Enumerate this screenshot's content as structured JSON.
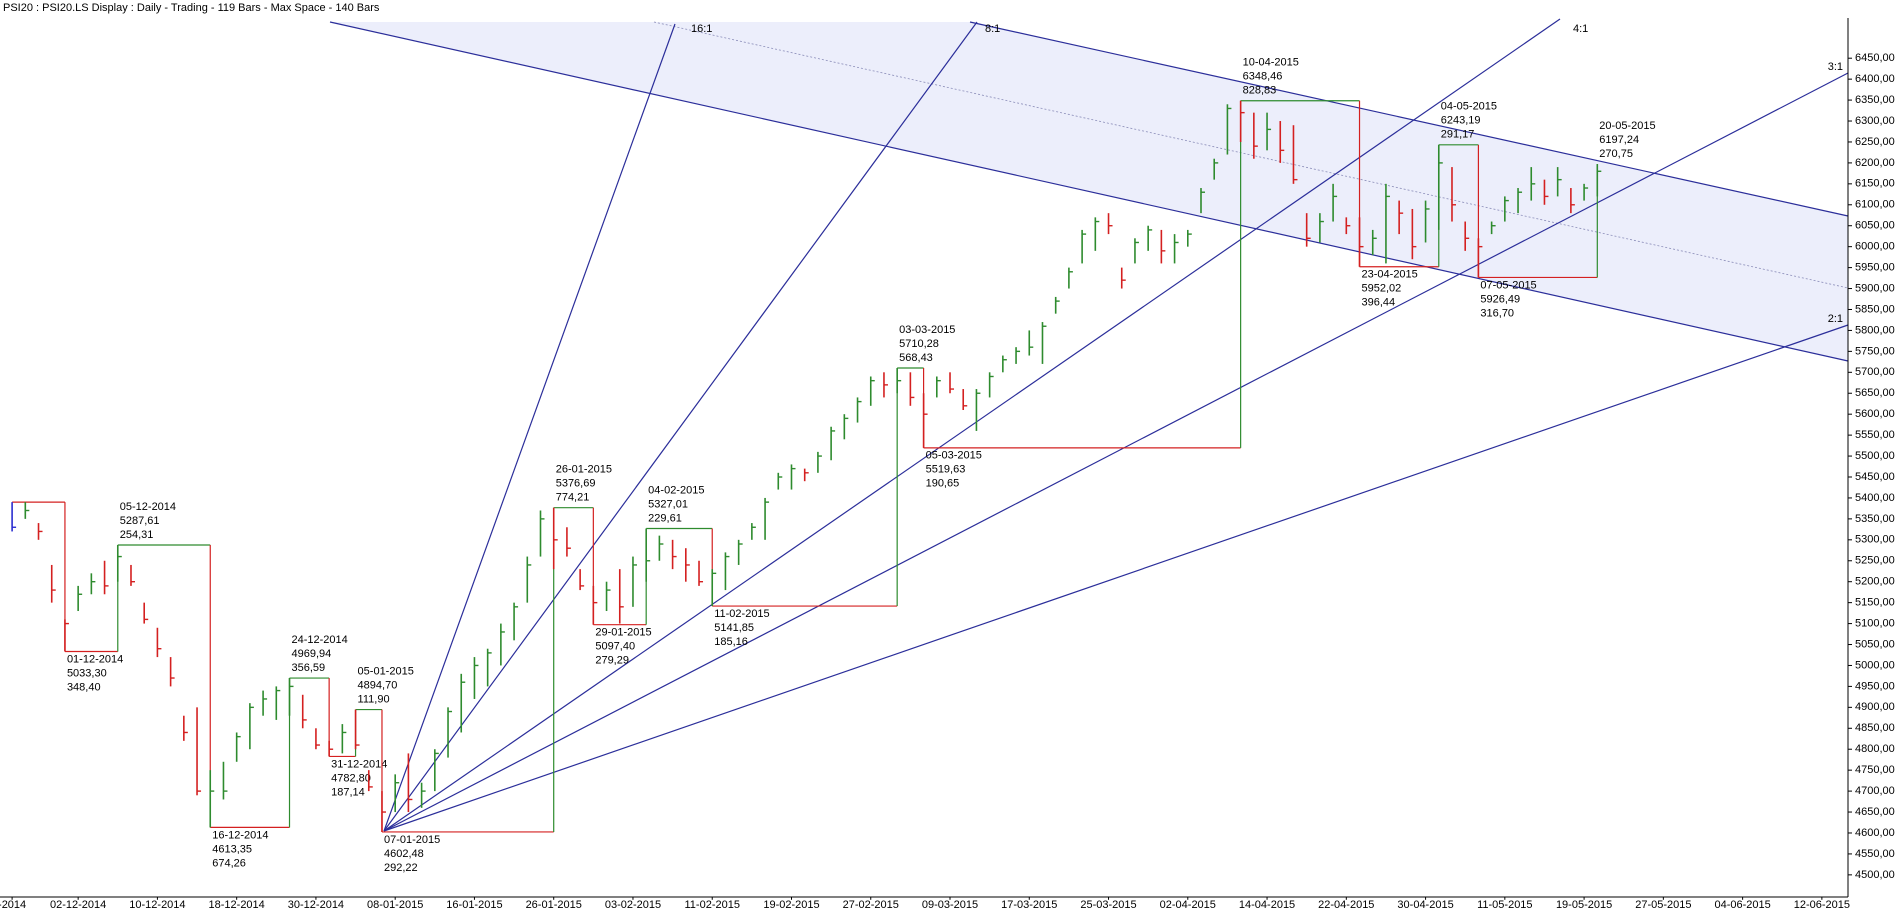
{
  "header": {
    "title": "PSI20 : PSI20.LS Display :  Daily  - Trading - 119 Bars -  Max Space - 140 Bars"
  },
  "chart_data": {
    "type": "ohlc",
    "categories": [
      "-2014",
      null,
      null,
      null,
      null,
      "02-12-2014",
      null,
      null,
      null,
      null,
      null,
      "10-12-2014",
      null,
      null,
      null,
      null,
      null,
      "18-12-2014",
      null,
      null,
      null,
      null,
      null,
      "30-12-2014",
      null,
      null,
      null,
      null,
      null,
      "08-01-2015",
      null,
      null,
      null,
      null,
      null,
      "16-01-2015",
      null,
      null,
      null,
      null,
      null,
      "26-01-2015",
      null,
      null,
      null,
      null,
      null,
      "03-02-2015",
      null,
      null,
      null,
      null,
      null,
      "11-02-2015",
      null,
      null,
      null,
      null,
      null,
      "19-02-2015",
      null,
      null,
      null,
      null,
      null,
      "27-02-2015",
      null,
      null,
      null,
      null,
      null,
      "09-03-2015",
      null,
      null,
      null,
      null,
      null,
      "17-03-2015",
      null,
      null,
      null,
      null,
      null,
      "25-03-2015",
      null,
      null,
      null,
      null,
      null,
      "02-04-2015",
      null,
      null,
      null,
      null,
      null,
      "14-04-2015",
      null,
      null,
      null,
      null,
      null,
      "22-04-2015",
      null,
      null,
      null,
      null,
      null,
      "30-04-2015",
      null,
      null,
      null,
      null,
      null,
      "11-05-2015",
      null,
      null,
      null,
      null,
      null,
      "19-05-2015",
      null,
      null,
      null,
      null,
      null,
      "27-05-2015",
      null,
      null,
      null,
      null,
      null,
      "04-06-2015",
      null,
      null,
      null,
      null,
      null,
      "12-06-2015",
      null,
      null
    ],
    "high": [
      5390,
      5390,
      5340,
      5240,
      5110,
      5190,
      5220,
      5250,
      5287.61,
      5240,
      5150,
      5090,
      5020,
      4880,
      4900,
      4750,
      4770,
      4840,
      4910,
      4940,
      4950,
      4969.94,
      4930,
      4850,
      4820,
      4860,
      4894.7,
      4750,
      4700,
      4740,
      4790,
      4720,
      4800,
      4900,
      4980,
      5020,
      5040,
      5100,
      5150,
      5260,
      5370,
      5376.69,
      5330,
      5230,
      5190,
      5200,
      5230,
      5260,
      5327.01,
      5310,
      5300,
      5280,
      5250,
      5230,
      5270,
      5300,
      5340,
      5400,
      5460,
      5480,
      5470,
      5510,
      5570,
      5600,
      5640,
      5690,
      5700,
      5710.28,
      5700,
      5650,
      5690,
      5700,
      5660,
      5660,
      5700,
      5740,
      5760,
      5800,
      5820,
      5880,
      5950,
      6040,
      6070,
      6080,
      5950,
      6020,
      6050,
      6040,
      6030,
      6040,
      6140,
      6210,
      6340,
      6348.46,
      6320,
      6320,
      6300,
      6290,
      6080,
      6080,
      6150,
      6070,
      6070,
      6040,
      6150,
      6110,
      6090,
      6110,
      6243.19,
      6190,
      6060,
      6020,
      6060,
      6120,
      6140,
      6190,
      6160,
      6190,
      6140,
      6150,
      6197.24,
      null,
      null,
      null,
      null,
      null,
      null,
      null,
      null,
      null,
      null,
      null,
      null,
      null,
      null,
      null,
      null,
      null,
      null,
      null
    ],
    "low": [
      5320,
      5350,
      5300,
      5150,
      5033.3,
      5130,
      5170,
      5170,
      5200,
      5190,
      5100,
      5020,
      4950,
      4820,
      4690,
      4613.35,
      4680,
      4770,
      4800,
      4880,
      4870,
      4880,
      4850,
      4800,
      4782.8,
      4790,
      4800,
      4700,
      4602.48,
      4650,
      4650,
      4660,
      4700,
      4780,
      4840,
      4920,
      4950,
      5000,
      5060,
      5150,
      5260,
      5230,
      5260,
      5180,
      5097.4,
      5130,
      5100,
      5140,
      5200,
      5250,
      5230,
      5200,
      5190,
      5141.85,
      5180,
      5240,
      5300,
      5300,
      5420,
      5420,
      5440,
      5460,
      5490,
      5540,
      5580,
      5620,
      5640,
      5650,
      5620,
      5519.63,
      5640,
      5650,
      5610,
      5560,
      5640,
      5700,
      5720,
      5740,
      5720,
      5840,
      5900,
      5960,
      5990,
      6030,
      5900,
      5960,
      5990,
      5960,
      5960,
      6000,
      6080,
      6160,
      6220,
      6250,
      6210,
      6230,
      6200,
      6150,
      6000,
      6010,
      6060,
      6030,
      5952.02,
      5980,
      5960,
      6030,
      5970,
      6010,
      6040,
      6060,
      5990,
      5926.49,
      6030,
      6060,
      6080,
      6110,
      6100,
      6120,
      6080,
      6110,
      6120,
      null,
      null,
      null,
      null,
      null,
      null,
      null,
      null,
      null,
      null,
      null,
      null,
      null,
      null,
      null,
      null,
      null,
      null,
      null
    ],
    "close": [
      5330,
      5370,
      5320,
      5180,
      5100,
      5170,
      5200,
      5190,
      5260,
      5200,
      5110,
      5040,
      4970,
      4840,
      4700,
      4700,
      4700,
      4830,
      4900,
      4920,
      4940,
      4950,
      4870,
      4810,
      4800,
      4840,
      4810,
      4710,
      4650,
      4720,
      4680,
      4700,
      4790,
      4890,
      4960,
      5000,
      5030,
      5080,
      5140,
      5240,
      5350,
      5300,
      5280,
      5190,
      5150,
      5180,
      5140,
      5240,
      5250,
      5290,
      5260,
      5240,
      5200,
      5220,
      5260,
      5290,
      5330,
      5390,
      5450,
      5470,
      5460,
      5500,
      5560,
      5590,
      5630,
      5680,
      5670,
      5680,
      5640,
      5600,
      5680,
      5660,
      5620,
      5650,
      5690,
      5730,
      5750,
      5760,
      5810,
      5870,
      5940,
      6030,
      6060,
      6050,
      5920,
      6010,
      6040,
      5990,
      6010,
      6030,
      6130,
      6200,
      6330,
      6320,
      6240,
      6280,
      6230,
      6160,
      6020,
      6060,
      6120,
      6050,
      6000,
      6020,
      6120,
      6080,
      6000,
      6090,
      6200,
      6100,
      6020,
      6000,
      6050,
      6110,
      6130,
      6150,
      6120,
      6160,
      6100,
      6140,
      6180,
      null,
      null,
      null,
      null,
      null,
      null,
      null,
      null,
      null,
      null,
      null,
      null,
      null,
      null,
      null,
      null,
      null,
      null,
      null
    ],
    "up_color": "#2e8b2e",
    "down_color": "#d42020",
    "ylim": [
      4450,
      6530
    ],
    "yticks": [
      {
        "value": 4500,
        "label": "4500,00"
      },
      {
        "value": 4550,
        "label": "4550,00"
      },
      {
        "value": 4600,
        "label": "4600,00"
      },
      {
        "value": 4650,
        "label": "4650,00"
      },
      {
        "value": 4700,
        "label": "4700,00"
      },
      {
        "value": 4750,
        "label": "4750,00"
      },
      {
        "value": 4800,
        "label": "4800,00"
      },
      {
        "value": 4850,
        "label": "4850,00"
      },
      {
        "value": 4900,
        "label": "4900,00"
      },
      {
        "value": 4950,
        "label": "4950,00"
      },
      {
        "value": 5000,
        "label": "5000,00"
      },
      {
        "value": 5050,
        "label": "5050,00"
      },
      {
        "value": 5100,
        "label": "5100,00"
      },
      {
        "value": 5150,
        "label": "5150,00"
      },
      {
        "value": 5200,
        "label": "5200,00"
      },
      {
        "value": 5250,
        "label": "5250,00"
      },
      {
        "value": 5300,
        "label": "5300,00"
      },
      {
        "value": 5350,
        "label": "5350,00"
      },
      {
        "value": 5400,
        "label": "5400,00"
      },
      {
        "value": 5450,
        "label": "5450,00"
      },
      {
        "value": 5500,
        "label": "5500,00"
      },
      {
        "value": 5550,
        "label": "5550,00"
      },
      {
        "value": 5600,
        "label": "5600,00"
      },
      {
        "value": 5650,
        "label": "5650,00"
      },
      {
        "value": 5700,
        "label": "5700,00"
      },
      {
        "value": 5750,
        "label": "5750,00"
      },
      {
        "value": 5800,
        "label": "5800,00"
      },
      {
        "value": 5850,
        "label": "5850,00"
      },
      {
        "value": 5900,
        "label": "5900,00"
      },
      {
        "value": 5950,
        "label": "5950,00"
      },
      {
        "value": 6000,
        "label": "6000,00"
      },
      {
        "value": 6050,
        "label": "6050,00"
      },
      {
        "value": 6100,
        "label": "6100,00"
      },
      {
        "value": 6150,
        "label": "6150,00"
      },
      {
        "value": 6200,
        "label": "6200,00"
      },
      {
        "value": 6250,
        "label": "6250,00"
      },
      {
        "value": 6300,
        "label": "6300,00"
      },
      {
        "value": 6350,
        "label": "6350,00"
      },
      {
        "value": 6400,
        "label": "6400,00"
      },
      {
        "value": 6450,
        "label": "6450,00"
      }
    ],
    "swings": [
      {
        "date": "01-12-2014",
        "price": {
          "value": 5033.3,
          "label": "5033,30"
        },
        "range": "348,40"
      },
      {
        "date": "05-12-2014",
        "price": {
          "value": 5287.61,
          "label": "5287,61"
        },
        "range": "254,31"
      },
      {
        "date": "16-12-2014",
        "price": {
          "value": 4613.35,
          "label": "4613,35"
        },
        "range": "674,26"
      },
      {
        "date": "24-12-2014",
        "price": {
          "value": 4969.94,
          "label": "4969,94"
        },
        "range": "356,59"
      },
      {
        "date": "31-12-2014",
        "price": {
          "value": 4782.8,
          "label": "4782,80"
        },
        "range": "187,14"
      },
      {
        "date": "05-01-2015",
        "price": {
          "value": 4894.7,
          "label": "4894,70"
        },
        "range": "111,90"
      },
      {
        "date": "07-01-2015",
        "price": {
          "value": 4602.48,
          "label": "4602,48"
        },
        "range": "292,22"
      },
      {
        "date": "26-01-2015",
        "price": {
          "value": 5376.69,
          "label": "5376,69"
        },
        "range": "774,21"
      },
      {
        "date": "29-01-2015",
        "price": {
          "value": 5097.4,
          "label": "5097,40"
        },
        "range": "279,29"
      },
      {
        "date": "04-02-2015",
        "price": {
          "value": 5327.01,
          "label": "5327,01"
        },
        "range": "229,61"
      },
      {
        "date": "11-02-2015",
        "price": {
          "value": 5141.85,
          "label": "5141,85"
        },
        "range": "185,16"
      },
      {
        "date": "03-03-2015",
        "price": {
          "value": 5710.28,
          "label": "5710,28"
        },
        "range": "568,43"
      },
      {
        "date": "05-03-2015",
        "price": {
          "value": 5519.63,
          "label": "5519,63"
        },
        "range": "190,65"
      },
      {
        "date": "10-04-2015",
        "price": {
          "value": 6348.46,
          "label": "6348,46"
        },
        "range": "828,83"
      },
      {
        "date": "23-04-2015",
        "price": {
          "value": 5952.02,
          "label": "5952,02"
        },
        "range": "396,44"
      },
      {
        "date": "04-05-2015",
        "price": {
          "value": 6243.19,
          "label": "6243,19"
        },
        "range": "291,17"
      },
      {
        "date": "07-05-2015",
        "price": {
          "value": 5926.49,
          "label": "5926,49"
        },
        "range": "316,70"
      },
      {
        "date": "20-05-2015",
        "price": {
          "value": 6197.24,
          "label": "6197,24"
        },
        "range": "270,75"
      }
    ],
    "fan_labels": [
      "16:1",
      "8:1",
      "4:1",
      "3:1",
      "2:1"
    ]
  }
}
